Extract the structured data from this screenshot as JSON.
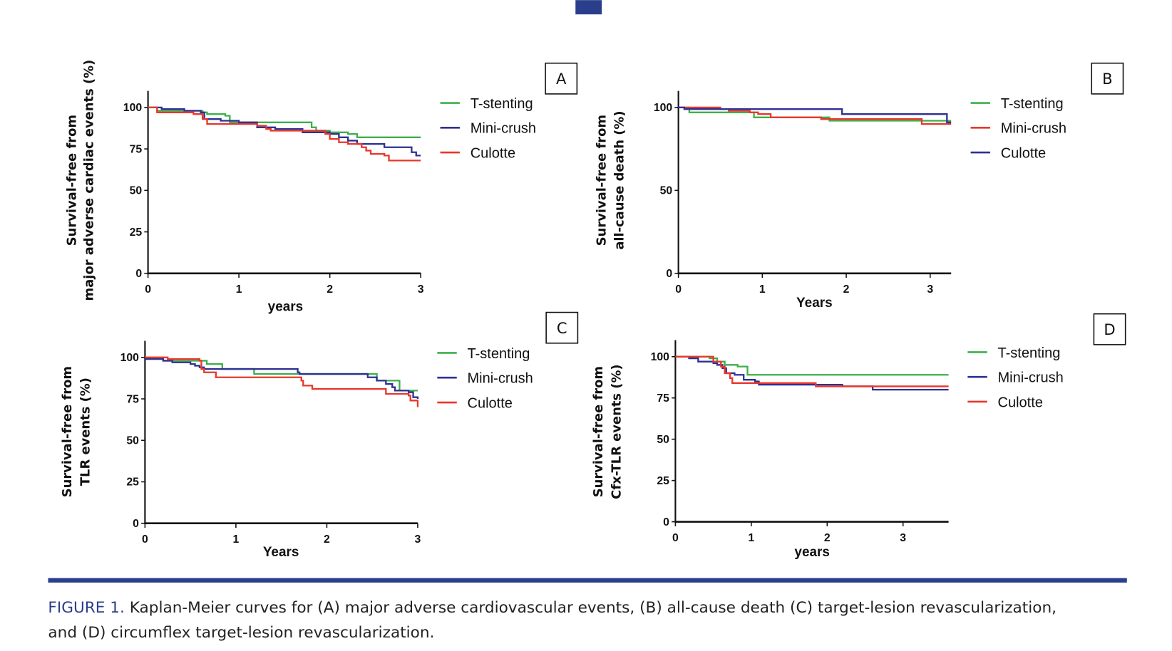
{
  "colors": {
    "green": "#3db04b",
    "blue": "#2e3192",
    "red": "#e8372b",
    "navy": "#2a3f8c"
  },
  "caption": {
    "figure_label": "FIGURE 1.",
    "line1": " Kaplan-Meier curves for (A) major adverse cardiovascular events, (B) all-cause death (C) target-lesion revascularization,",
    "line2": "and (D) circumflex target-lesion revascularization."
  },
  "chart_data": [
    {
      "type": "line",
      "panel": "A",
      "xlabel": "years",
      "ylabel": [
        "Survival-free from",
        "major adverse cardiac events (%)"
      ],
      "xlim": [
        0,
        3
      ],
      "ylim": [
        0,
        110
      ],
      "xticks": [
        0,
        1,
        2,
        3
      ],
      "yticks": [
        0,
        25,
        50,
        75,
        100
      ],
      "legend": "right",
      "series": [
        {
          "name": "T-stenting",
          "color": "green",
          "points": [
            [
              0,
              100
            ],
            [
              0.1,
              98
            ],
            [
              0.6,
              97
            ],
            [
              0.65,
              96
            ],
            [
              0.85,
              95
            ],
            [
              0.9,
              91
            ],
            [
              1.7,
              91
            ],
            [
              1.8,
              88
            ],
            [
              1.85,
              86
            ],
            [
              2.0,
              85
            ],
            [
              2.2,
              84
            ],
            [
              2.3,
              82
            ],
            [
              3,
              82
            ]
          ]
        },
        {
          "name": "Mini-crush",
          "color": "blue",
          "points": [
            [
              0,
              100
            ],
            [
              0.15,
              99
            ],
            [
              0.4,
              98
            ],
            [
              0.58,
              97
            ],
            [
              0.62,
              93
            ],
            [
              0.8,
              92
            ],
            [
              1.0,
              91
            ],
            [
              1.2,
              88
            ],
            [
              1.4,
              87
            ],
            [
              1.7,
              85
            ],
            [
              2.0,
              84
            ],
            [
              2.1,
              82
            ],
            [
              2.2,
              80
            ],
            [
              2.3,
              78
            ],
            [
              2.6,
              76
            ],
            [
              2.9,
              73
            ],
            [
              2.95,
              71
            ],
            [
              3,
              71
            ]
          ]
        },
        {
          "name": "Culotte",
          "color": "red",
          "points": [
            [
              0,
              100
            ],
            [
              0.1,
              97
            ],
            [
              0.5,
              96
            ],
            [
              0.6,
              93
            ],
            [
              0.65,
              90
            ],
            [
              1.2,
              89
            ],
            [
              1.3,
              87
            ],
            [
              1.35,
              86
            ],
            [
              1.7,
              86
            ],
            [
              1.95,
              84
            ],
            [
              2.0,
              81
            ],
            [
              2.1,
              79
            ],
            [
              2.2,
              78
            ],
            [
              2.35,
              76
            ],
            [
              2.4,
              74
            ],
            [
              2.45,
              72
            ],
            [
              2.6,
              71
            ],
            [
              2.65,
              68
            ],
            [
              3,
              68
            ]
          ]
        }
      ]
    },
    {
      "type": "line",
      "panel": "B",
      "xlabel": "Years",
      "ylabel": [
        "Survival-free from",
        "all-cause death (%)"
      ],
      "xlim": [
        0,
        3.25
      ],
      "ylim": [
        0,
        110
      ],
      "xticks": [
        0,
        1,
        2,
        3
      ],
      "yticks": [
        0,
        50,
        100
      ],
      "legend": "right",
      "series": [
        {
          "name": "T-stenting",
          "color": "green",
          "points": [
            [
              0,
              100
            ],
            [
              0.13,
              97
            ],
            [
              0.9,
              94
            ],
            [
              1.8,
              92
            ],
            [
              3.25,
              92
            ]
          ]
        },
        {
          "name": "Mini-crush",
          "color": "red",
          "points": [
            [
              0,
              100
            ],
            [
              0.5,
              99
            ],
            [
              0.6,
              98
            ],
            [
              0.85,
              97
            ],
            [
              0.95,
              96
            ],
            [
              1.1,
              94
            ],
            [
              1.7,
              93
            ],
            [
              2.9,
              90
            ],
            [
              3.25,
              90
            ]
          ]
        },
        {
          "name": "Culotte",
          "color": "blue",
          "points": [
            [
              0,
              100
            ],
            [
              0.07,
              99
            ],
            [
              0.6,
              99
            ],
            [
              1.95,
              96
            ],
            [
              3.2,
              91
            ],
            [
              3.25,
              91
            ]
          ]
        }
      ]
    },
    {
      "type": "line",
      "panel": "C",
      "xlabel": "Years",
      "ylabel": [
        "Survival-free from",
        "TLR events (%)"
      ],
      "xlim": [
        0,
        3
      ],
      "ylim": [
        0,
        110
      ],
      "xticks": [
        0,
        1,
        2,
        3
      ],
      "yticks": [
        0,
        25,
        50,
        75,
        100
      ],
      "legend": "right",
      "series": [
        {
          "name": "T-stenting",
          "color": "green",
          "points": [
            [
              0,
              100
            ],
            [
              0.2,
              98
            ],
            [
              0.55,
              98
            ],
            [
              0.68,
              96
            ],
            [
              0.85,
              93
            ],
            [
              1.2,
              90
            ],
            [
              2.5,
              90
            ],
            [
              2.55,
              86
            ],
            [
              2.8,
              80
            ],
            [
              3,
              80
            ]
          ]
        },
        {
          "name": "Mini-crush",
          "color": "blue",
          "points": [
            [
              0,
              99
            ],
            [
              0.2,
              98
            ],
            [
              0.3,
              97
            ],
            [
              0.5,
              96
            ],
            [
              0.55,
              95
            ],
            [
              0.6,
              94
            ],
            [
              0.65,
              93
            ],
            [
              1.65,
              93
            ],
            [
              1.68,
              91
            ],
            [
              1.7,
              90
            ],
            [
              2.45,
              88
            ],
            [
              2.55,
              86
            ],
            [
              2.65,
              84
            ],
            [
              2.72,
              82
            ],
            [
              2.75,
              80
            ],
            [
              2.9,
              79
            ],
            [
              2.95,
              76
            ],
            [
              3,
              75
            ]
          ]
        },
        {
          "name": "Culotte",
          "color": "red",
          "points": [
            [
              0,
              100
            ],
            [
              0.25,
              99
            ],
            [
              0.6,
              98
            ],
            [
              0.62,
              93
            ],
            [
              0.65,
              91
            ],
            [
              0.78,
              88
            ],
            [
              1.7,
              88
            ],
            [
              1.72,
              86
            ],
            [
              1.74,
              83
            ],
            [
              1.84,
              81
            ],
            [
              2.6,
              81
            ],
            [
              2.65,
              78
            ],
            [
              2.9,
              77
            ],
            [
              2.92,
              74
            ],
            [
              3,
              70
            ]
          ]
        }
      ]
    },
    {
      "type": "line",
      "panel": "D",
      "xlabel": "years",
      "ylabel": [
        "Survival-free from",
        "Cfx-TLR events (%)"
      ],
      "xlim": [
        0,
        3.6
      ],
      "ylim": [
        0,
        110
      ],
      "xticks": [
        0,
        1,
        2,
        3
      ],
      "yticks": [
        0,
        25,
        50,
        75,
        100
      ],
      "legend": "right",
      "series": [
        {
          "name": "T-stenting",
          "color": "green",
          "points": [
            [
              0,
              100
            ],
            [
              0.45,
              99
            ],
            [
              0.55,
              97
            ],
            [
              0.65,
              95
            ],
            [
              0.82,
              94
            ],
            [
              0.95,
              89
            ],
            [
              3.6,
              89
            ]
          ]
        },
        {
          "name": "Mini-crush",
          "color": "blue",
          "points": [
            [
              0,
              100
            ],
            [
              0.18,
              99
            ],
            [
              0.3,
              97
            ],
            [
              0.5,
              96
            ],
            [
              0.55,
              95
            ],
            [
              0.62,
              93
            ],
            [
              0.67,
              90
            ],
            [
              0.78,
              89
            ],
            [
              0.9,
              86
            ],
            [
              1.05,
              85
            ],
            [
              1.1,
              83
            ],
            [
              2.2,
              82
            ],
            [
              2.6,
              80
            ],
            [
              3.6,
              80
            ]
          ]
        },
        {
          "name": "Culotte",
          "color": "red",
          "points": [
            [
              0,
              100
            ],
            [
              0.5,
              97
            ],
            [
              0.6,
              94
            ],
            [
              0.65,
              90
            ],
            [
              0.72,
              87
            ],
            [
              0.75,
              84
            ],
            [
              1.85,
              82
            ],
            [
              2.6,
              82
            ],
            [
              3.6,
              82
            ]
          ]
        }
      ]
    }
  ]
}
